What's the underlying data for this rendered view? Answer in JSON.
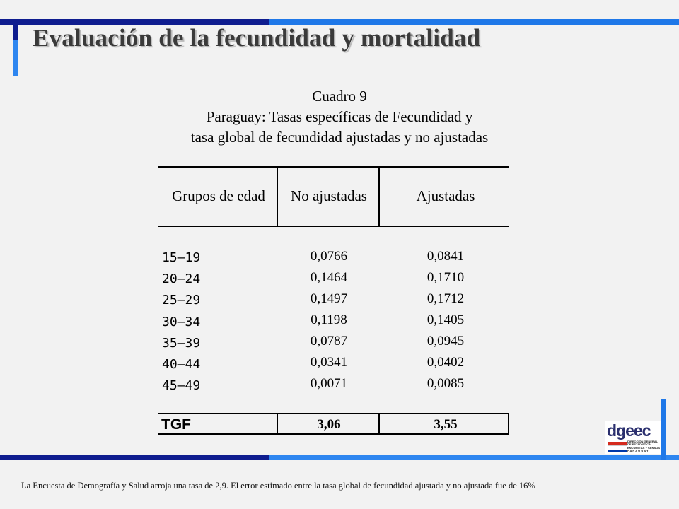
{
  "slide": {
    "title": "Evaluación de la fecundidad y mortalidad",
    "accent_dark": "#0f1d8f",
    "accent_light": "#2e86f0"
  },
  "table": {
    "caption": [
      "Cuadro 9",
      "Paraguay: Tasas específicas de Fecundidad y",
      "tasa global de fecundidad ajustadas y no ajustadas"
    ],
    "headers": [
      "Grupos de edad",
      "No ajustadas",
      "Ajustadas"
    ],
    "rows": [
      {
        "age": "15–19",
        "no_ajustadas": "0,0766",
        "ajustadas": "0,0841"
      },
      {
        "age": "20–24",
        "no_ajustadas": "0,1464",
        "ajustadas": "0,1710"
      },
      {
        "age": "25–29",
        "no_ajustadas": "0,1497",
        "ajustadas": "0,1712"
      },
      {
        "age": "30–34",
        "no_ajustadas": "0,1198",
        "ajustadas": "0,1405"
      },
      {
        "age": "35–39",
        "no_ajustadas": "0,0787",
        "ajustadas": "0,0945"
      },
      {
        "age": "40–44",
        "no_ajustadas": "0,0341",
        "ajustadas": "0,0402"
      },
      {
        "age": "45–49",
        "no_ajustadas": "0,0071",
        "ajustadas": "0,0085"
      }
    ],
    "total": {
      "label": "TGF",
      "no_ajustadas": "3,06",
      "ajustadas": "3,55"
    }
  },
  "footnote": "La Encuesta de Demografía y Salud arroja una tasa de 2,9. El error estimado entre la tasa global de fecundidad ajustada y no ajustada fue de 16%",
  "logo": {
    "name": "dgeec",
    "lines": [
      "DIRECCIÓN GENERAL",
      "DE ESTADÍSTICA,",
      "ENCUESTAS Y CENSOS",
      "P A R A G U A Y"
    ],
    "stripe_colors": [
      "#d52b1e",
      "#ffffff",
      "#0038a8"
    ]
  }
}
